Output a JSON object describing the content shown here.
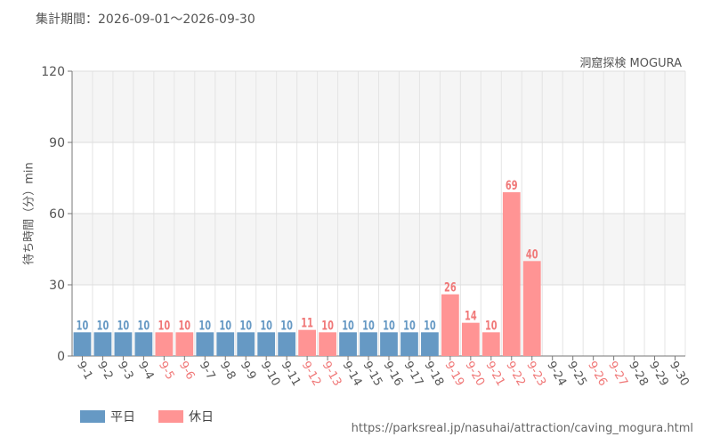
{
  "header": {
    "period": "集計期間：2026-09-01～2026-09-30",
    "attraction": "洞窟探検 MOGURA"
  },
  "footer": {
    "source": "https://parksreal.jp/nasuhai/attraction/caving_mogura.html"
  },
  "colors": {
    "weekday": "#6699c4",
    "holiday": "#ff9494",
    "weekday_label": "#555555",
    "holiday_label": "#f07878"
  },
  "chart_data": {
    "type": "bar",
    "ylabel": "待ち時間（分）min",
    "ylim": [
      0,
      120
    ],
    "yticks": [
      0,
      30,
      60,
      90,
      120
    ],
    "categories": [
      "9-1",
      "9-2",
      "9-3",
      "9-4",
      "9-5",
      "9-6",
      "9-7",
      "9-8",
      "9-9",
      "9-10",
      "9-11",
      "9-12",
      "9-13",
      "9-14",
      "9-15",
      "9-16",
      "9-17",
      "9-18",
      "9-19",
      "9-20",
      "9-21",
      "9-22",
      "9-23",
      "9-24",
      "9-25",
      "9-26",
      "9-27",
      "9-28",
      "9-29",
      "9-30"
    ],
    "values": [
      10,
      10,
      10,
      10,
      10,
      10,
      10,
      10,
      10,
      10,
      10,
      11,
      10,
      10,
      10,
      10,
      10,
      10,
      26,
      14,
      10,
      69,
      40,
      null,
      null,
      null,
      null,
      null,
      null,
      null
    ],
    "day_type": [
      "weekday",
      "weekday",
      "weekday",
      "weekday",
      "holiday",
      "holiday",
      "weekday",
      "weekday",
      "weekday",
      "weekday",
      "weekday",
      "holiday",
      "holiday",
      "weekday",
      "weekday",
      "weekday",
      "weekday",
      "weekday",
      "holiday",
      "holiday",
      "holiday",
      "holiday",
      "holiday",
      "weekday",
      "weekday",
      "holiday",
      "holiday",
      "weekday",
      "weekday",
      "weekday"
    ],
    "legend": [
      {
        "key": "weekday",
        "label": "平日"
      },
      {
        "key": "holiday",
        "label": "休日"
      }
    ],
    "grid": true
  }
}
